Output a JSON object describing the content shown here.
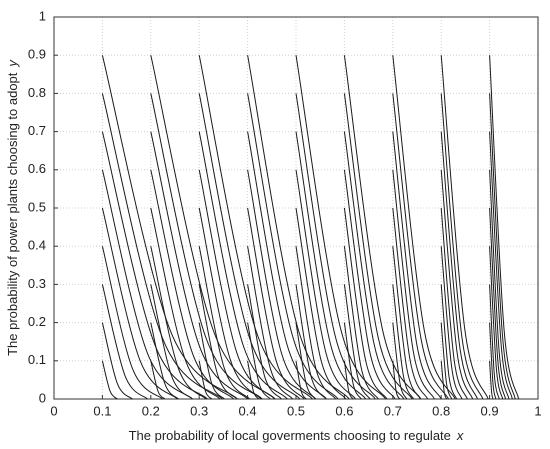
{
  "chart_data": {
    "type": "line",
    "ylabel": "The probability of power plants choosing to adopt",
    "ylabel_var": "y",
    "xlabel": "The probability of local goverments choosing to regulate",
    "xlabel_var": "x",
    "xlim": [
      0,
      1
    ],
    "ylim": [
      0,
      1
    ],
    "xticks": [
      0,
      0.1,
      0.2,
      0.3,
      0.4,
      0.5,
      0.6,
      0.7,
      0.8,
      0.9,
      1
    ],
    "yticks": [
      0,
      0.1,
      0.2,
      0.3,
      0.4,
      0.5,
      0.6,
      0.7,
      0.8,
      0.9,
      1
    ],
    "grid": true,
    "color": "#1a1a1a",
    "series": [
      {
        "x": [
          0.1,
          0.116,
          0.131
        ],
        "values": [
          0.1,
          0.02,
          0
        ]
      },
      {
        "x": [
          0.1,
          0.131,
          0.162
        ],
        "values": [
          0.2,
          0.04,
          0
        ]
      },
      {
        "x": [
          0.1,
          0.147,
          0.193
        ],
        "values": [
          0.3,
          0.06,
          0
        ]
      },
      {
        "x": [
          0.1,
          0.162,
          0.224
        ],
        "values": [
          0.4,
          0.08,
          0
        ]
      },
      {
        "x": [
          0.1,
          0.178,
          0.255
        ],
        "values": [
          0.5,
          0.1,
          0
        ]
      },
      {
        "x": [
          0.1,
          0.193,
          0.286
        ],
        "values": [
          0.6,
          0.12,
          0
        ]
      },
      {
        "x": [
          0.1,
          0.209,
          0.317
        ],
        "values": [
          0.7,
          0.14,
          0
        ]
      },
      {
        "x": [
          0.1,
          0.224,
          0.348
        ],
        "values": [
          0.8,
          0.16,
          0
        ]
      },
      {
        "x": [
          0.1,
          0.24,
          0.379
        ],
        "values": [
          0.9,
          0.18,
          0
        ]
      },
      {
        "x": [
          0.2,
          0.215,
          0.229
        ],
        "values": [
          0.1,
          0.02,
          0
        ]
      },
      {
        "x": [
          0.2,
          0.229,
          0.257
        ],
        "values": [
          0.2,
          0.04,
          0
        ]
      },
      {
        "x": [
          0.2,
          0.243,
          0.286
        ],
        "values": [
          0.3,
          0.06,
          0
        ]
      },
      {
        "x": [
          0.2,
          0.257,
          0.314
        ],
        "values": [
          0.4,
          0.08,
          0
        ]
      },
      {
        "x": [
          0.2,
          0.272,
          0.343
        ],
        "values": [
          0.5,
          0.1,
          0
        ]
      },
      {
        "x": [
          0.2,
          0.286,
          0.371
        ],
        "values": [
          0.6,
          0.12,
          0
        ]
      },
      {
        "x": [
          0.2,
          0.3,
          0.4
        ],
        "values": [
          0.7,
          0.14,
          0
        ]
      },
      {
        "x": [
          0.2,
          0.314,
          0.428
        ],
        "values": [
          0.8,
          0.16,
          0
        ]
      },
      {
        "x": [
          0.2,
          0.329,
          0.457
        ],
        "values": [
          0.9,
          0.18,
          0
        ]
      },
      {
        "x": [
          0.3,
          0.313,
          0.326
        ],
        "values": [
          0.1,
          0.02,
          0
        ]
      },
      {
        "x": [
          0.3,
          0.326,
          0.352
        ],
        "values": [
          0.2,
          0.04,
          0
        ]
      },
      {
        "x": [
          0.3,
          0.339,
          0.378
        ],
        "values": [
          0.3,
          0.06,
          0
        ]
      },
      {
        "x": [
          0.3,
          0.352,
          0.404
        ],
        "values": [
          0.4,
          0.08,
          0
        ]
      },
      {
        "x": [
          0.3,
          0.365,
          0.43
        ],
        "values": [
          0.5,
          0.1,
          0
        ]
      },
      {
        "x": [
          0.3,
          0.378,
          0.456
        ],
        "values": [
          0.6,
          0.12,
          0
        ]
      },
      {
        "x": [
          0.3,
          0.391,
          0.482
        ],
        "values": [
          0.7,
          0.14,
          0
        ]
      },
      {
        "x": [
          0.3,
          0.404,
          0.508
        ],
        "values": [
          0.8,
          0.16,
          0
        ]
      },
      {
        "x": [
          0.3,
          0.417,
          0.534
        ],
        "values": [
          0.9,
          0.18,
          0
        ]
      },
      {
        "x": [
          0.4,
          0.412,
          0.423
        ],
        "values": [
          0.1,
          0.02,
          0
        ]
      },
      {
        "x": [
          0.4,
          0.424,
          0.447
        ],
        "values": [
          0.2,
          0.04,
          0
        ]
      },
      {
        "x": [
          0.4,
          0.435,
          0.47
        ],
        "values": [
          0.3,
          0.06,
          0
        ]
      },
      {
        "x": [
          0.4,
          0.447,
          0.493
        ],
        "values": [
          0.4,
          0.08,
          0
        ]
      },
      {
        "x": [
          0.4,
          0.459,
          0.517
        ],
        "values": [
          0.5,
          0.1,
          0
        ]
      },
      {
        "x": [
          0.4,
          0.47,
          0.54
        ],
        "values": [
          0.6,
          0.12,
          0
        ]
      },
      {
        "x": [
          0.4,
          0.482,
          0.563
        ],
        "values": [
          0.7,
          0.14,
          0
        ]
      },
      {
        "x": [
          0.4,
          0.494,
          0.587
        ],
        "values": [
          0.8,
          0.16,
          0
        ]
      },
      {
        "x": [
          0.4,
          0.505,
          0.61
        ],
        "values": [
          0.9,
          0.18,
          0
        ]
      },
      {
        "x": [
          0.5,
          0.511,
          0.521
        ],
        "values": [
          0.1,
          0.02,
          0
        ]
      },
      {
        "x": [
          0.5,
          0.521,
          0.541
        ],
        "values": [
          0.2,
          0.04,
          0
        ]
      },
      {
        "x": [
          0.5,
          0.531,
          0.562
        ],
        "values": [
          0.3,
          0.06,
          0
        ]
      },
      {
        "x": [
          0.5,
          0.541,
          0.582
        ],
        "values": [
          0.4,
          0.08,
          0
        ]
      },
      {
        "x": [
          0.5,
          0.552,
          0.603
        ],
        "values": [
          0.5,
          0.1,
          0
        ]
      },
      {
        "x": [
          0.5,
          0.562,
          0.623
        ],
        "values": [
          0.6,
          0.12,
          0
        ]
      },
      {
        "x": [
          0.5,
          0.572,
          0.644
        ],
        "values": [
          0.7,
          0.14,
          0
        ]
      },
      {
        "x": [
          0.5,
          0.582,
          0.664
        ],
        "values": [
          0.8,
          0.16,
          0
        ]
      },
      {
        "x": [
          0.5,
          0.593,
          0.685
        ],
        "values": [
          0.9,
          0.18,
          0
        ]
      },
      {
        "x": [
          0.6,
          0.609,
          0.618
        ],
        "values": [
          0.1,
          0.02,
          0
        ]
      },
      {
        "x": [
          0.6,
          0.618,
          0.635
        ],
        "values": [
          0.2,
          0.04,
          0
        ]
      },
      {
        "x": [
          0.6,
          0.627,
          0.653
        ],
        "values": [
          0.3,
          0.06,
          0
        ]
      },
      {
        "x": [
          0.6,
          0.635,
          0.67
        ],
        "values": [
          0.4,
          0.08,
          0
        ]
      },
      {
        "x": [
          0.6,
          0.644,
          0.688
        ],
        "values": [
          0.5,
          0.1,
          0
        ]
      },
      {
        "x": [
          0.6,
          0.653,
          0.705
        ],
        "values": [
          0.6,
          0.12,
          0
        ]
      },
      {
        "x": [
          0.6,
          0.662,
          0.723
        ],
        "values": [
          0.7,
          0.14,
          0
        ]
      },
      {
        "x": [
          0.6,
          0.67,
          0.74
        ],
        "values": [
          0.8,
          0.16,
          0
        ]
      },
      {
        "x": [
          0.6,
          0.679,
          0.758
        ],
        "values": [
          0.9,
          0.18,
          0
        ]
      },
      {
        "x": [
          0.7,
          0.707,
          0.714
        ],
        "values": [
          0.1,
          0.02,
          0
        ]
      },
      {
        "x": [
          0.7,
          0.715,
          0.729
        ],
        "values": [
          0.2,
          0.04,
          0
        ]
      },
      {
        "x": [
          0.7,
          0.722,
          0.743
        ],
        "values": [
          0.3,
          0.06,
          0
        ]
      },
      {
        "x": [
          0.7,
          0.729,
          0.757
        ],
        "values": [
          0.4,
          0.08,
          0
        ]
      },
      {
        "x": [
          0.7,
          0.736,
          0.772
        ],
        "values": [
          0.5,
          0.1,
          0
        ]
      },
      {
        "x": [
          0.7,
          0.743,
          0.786
        ],
        "values": [
          0.6,
          0.12,
          0
        ]
      },
      {
        "x": [
          0.7,
          0.75,
          0.8
        ],
        "values": [
          0.7,
          0.14,
          0
        ]
      },
      {
        "x": [
          0.7,
          0.758,
          0.815
        ],
        "values": [
          0.8,
          0.16,
          0
        ]
      },
      {
        "x": [
          0.7,
          0.765,
          0.829
        ],
        "values": [
          0.9,
          0.18,
          0
        ]
      },
      {
        "x": [
          0.8,
          0.806,
          0.811
        ],
        "values": [
          0.1,
          0.02,
          0
        ]
      },
      {
        "x": [
          0.8,
          0.811,
          0.822
        ],
        "values": [
          0.2,
          0.04,
          0
        ]
      },
      {
        "x": [
          0.8,
          0.816,
          0.832
        ],
        "values": [
          0.3,
          0.06,
          0
        ]
      },
      {
        "x": [
          0.8,
          0.822,
          0.843
        ],
        "values": [
          0.4,
          0.08,
          0
        ]
      },
      {
        "x": [
          0.8,
          0.827,
          0.854
        ],
        "values": [
          0.5,
          0.1,
          0
        ]
      },
      {
        "x": [
          0.8,
          0.833,
          0.865
        ],
        "values": [
          0.6,
          0.12,
          0
        ]
      },
      {
        "x": [
          0.8,
          0.838,
          0.875
        ],
        "values": [
          0.7,
          0.14,
          0
        ]
      },
      {
        "x": [
          0.8,
          0.843,
          0.886
        ],
        "values": [
          0.8,
          0.16,
          0
        ]
      },
      {
        "x": [
          0.8,
          0.849,
          0.897
        ],
        "values": [
          0.9,
          0.18,
          0
        ]
      },
      {
        "x": [
          0.9,
          0.904,
          0.907
        ],
        "values": [
          0.1,
          0.02,
          0
        ]
      },
      {
        "x": [
          0.9,
          0.907,
          0.913
        ],
        "values": [
          0.2,
          0.04,
          0
        ]
      },
      {
        "x": [
          0.9,
          0.91,
          0.92
        ],
        "values": [
          0.3,
          0.06,
          0
        ]
      },
      {
        "x": [
          0.9,
          0.914,
          0.927
        ],
        "values": [
          0.4,
          0.08,
          0
        ]
      },
      {
        "x": [
          0.9,
          0.917,
          0.933
        ],
        "values": [
          0.5,
          0.1,
          0
        ]
      },
      {
        "x": [
          0.9,
          0.92,
          0.94
        ],
        "values": [
          0.6,
          0.12,
          0
        ]
      },
      {
        "x": [
          0.9,
          0.924,
          0.947
        ],
        "values": [
          0.7,
          0.14,
          0
        ]
      },
      {
        "x": [
          0.9,
          0.927,
          0.953
        ],
        "values": [
          0.8,
          0.16,
          0
        ]
      },
      {
        "x": [
          0.9,
          0.93,
          0.96
        ],
        "values": [
          0.9,
          0.18,
          0
        ]
      }
    ]
  }
}
